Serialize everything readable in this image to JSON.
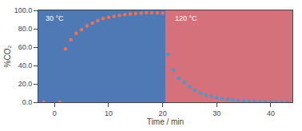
{
  "chart_data": {
    "type": "scatter",
    "xlabel": "Time / min",
    "ylabel": "%CO₂",
    "series": [
      {
        "color": "#E8735A",
        "x": [
          -2,
          1,
          2,
          3,
          4,
          5,
          6,
          7,
          8,
          9,
          10,
          11,
          12,
          13,
          14,
          15,
          16,
          17,
          18,
          19,
          20
        ],
        "values": [
          0.0,
          0.0,
          58.0,
          68.0,
          75.0,
          79.0,
          83.0,
          86.0,
          89.0,
          91.0,
          92.5,
          93.5,
          94.5,
          95.5,
          96.0,
          96.5,
          97.0,
          97.5,
          97.5,
          97.5,
          97.0
        ]
      },
      {
        "color": "#4F94CD",
        "x": [
          21,
          22,
          23,
          24,
          25,
          26,
          27,
          28,
          29,
          30,
          31,
          32,
          33,
          34,
          35,
          36,
          37,
          38,
          39,
          40,
          41,
          42,
          43
        ],
        "values": [
          52.0,
          35.0,
          26.0,
          22.0,
          17.0,
          13.0,
          10.0,
          8.0,
          6.5,
          5.0,
          4.0,
          3.0,
          2.5,
          2.0,
          1.5,
          1.2,
          1.0,
          0.8,
          0.7,
          0.6,
          0.5,
          0.4,
          0.3
        ]
      }
    ],
    "regions": [
      {
        "x0": -3,
        "x1": 20.5,
        "color": "#4F79B5"
      },
      {
        "x0": 20.5,
        "x1": 44,
        "color": "#D4717A"
      }
    ],
    "annotations": [
      {
        "text": "30 °C",
        "x": -2,
        "y": 97,
        "color": "#FFFFFF"
      },
      {
        "text": "120 °C",
        "x": 22,
        "y": 97,
        "color": "#FFFFFF"
      }
    ],
    "xlim": [
      -3,
      44
    ],
    "ylim": [
      0,
      100
    ],
    "xticks": [
      0,
      10,
      20,
      30,
      40
    ],
    "yticks": [
      {
        "value": 0,
        "label": "0.0"
      },
      {
        "value": 20,
        "label": "20.0"
      },
      {
        "value": 40,
        "label": "40.0"
      },
      {
        "value": 60,
        "label": "60.0"
      },
      {
        "value": 80,
        "label": "80.0"
      },
      {
        "value": 100,
        "label": "100.0"
      }
    ],
    "grid": false
  }
}
